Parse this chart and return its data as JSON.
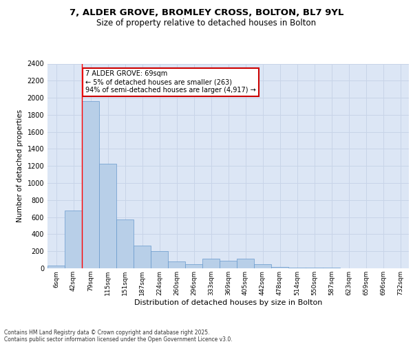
{
  "title_line1": "7, ALDER GROVE, BROMLEY CROSS, BOLTON, BL7 9YL",
  "title_line2": "Size of property relative to detached houses in Bolton",
  "xlabel": "Distribution of detached houses by size in Bolton",
  "ylabel": "Number of detached properties",
  "bar_values": [
    30,
    680,
    1960,
    1230,
    570,
    270,
    200,
    80,
    50,
    110,
    90,
    110,
    50,
    20,
    10,
    10,
    5,
    2,
    2,
    0,
    0
  ],
  "bin_labels": [
    "6sqm",
    "42sqm",
    "79sqm",
    "115sqm",
    "151sqm",
    "187sqm",
    "224sqm",
    "260sqm",
    "296sqm",
    "333sqm",
    "369sqm",
    "405sqm",
    "442sqm",
    "478sqm",
    "514sqm",
    "550sqm",
    "587sqm",
    "623sqm",
    "659sqm",
    "696sqm",
    "732sqm"
  ],
  "bar_color": "#b8cfe8",
  "bar_edge_color": "#6699cc",
  "grid_color": "#c8d4e8",
  "background_color": "#dce6f5",
  "red_line_x": 1.5,
  "annotation_text": "7 ALDER GROVE: 69sqm\n← 5% of detached houses are smaller (263)\n94% of semi-detached houses are larger (4,917) →",
  "annotation_box_color": "#ffffff",
  "annotation_box_edge": "#cc0000",
  "footer_line1": "Contains HM Land Registry data © Crown copyright and database right 2025.",
  "footer_line2": "Contains public sector information licensed under the Open Government Licence v3.0.",
  "ylim": [
    0,
    2400
  ],
  "yticks": [
    0,
    200,
    400,
    600,
    800,
    1000,
    1200,
    1400,
    1600,
    1800,
    2000,
    2200,
    2400
  ]
}
